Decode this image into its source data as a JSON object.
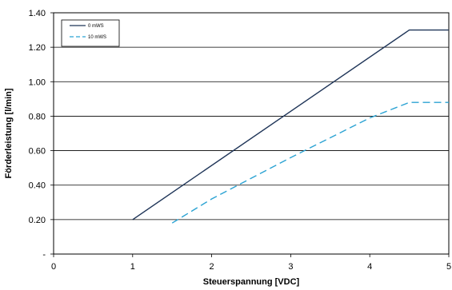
{
  "chart_data": {
    "type": "line",
    "xlabel": "Steuerspannung [VDC]",
    "ylabel": "Förderleistung [l/min]",
    "xlim": [
      0,
      5
    ],
    "ylim": [
      0,
      1.4
    ],
    "x_ticks": [
      0,
      1,
      2,
      3,
      4,
      5
    ],
    "x_tick_labels": [
      "0",
      "1",
      "2",
      "3",
      "4",
      "5"
    ],
    "y_ticks": [
      0,
      0.2,
      0.4,
      0.6,
      0.8,
      1.0,
      1.2,
      1.4
    ],
    "y_tick_labels": [
      "-",
      "0.20",
      "0.40",
      "0.60",
      "0.80",
      "1.00",
      "1.20",
      "1.40"
    ],
    "grid": {
      "horizontal": true,
      "vertical": false
    },
    "legend_position": "top-left",
    "series": [
      {
        "name": "0 mWS",
        "color": "#1f3558",
        "dash": "solid",
        "x": [
          1.0,
          4.5,
          5.0
        ],
        "y": [
          0.2,
          1.3,
          1.3
        ]
      },
      {
        "name": "10 mWS",
        "color": "#2ba3d3",
        "dash": "dashed",
        "x": [
          1.5,
          2.0,
          3.0,
          4.0,
          4.5,
          5.0
        ],
        "y": [
          0.18,
          0.32,
          0.56,
          0.79,
          0.88,
          0.88
        ]
      }
    ]
  }
}
